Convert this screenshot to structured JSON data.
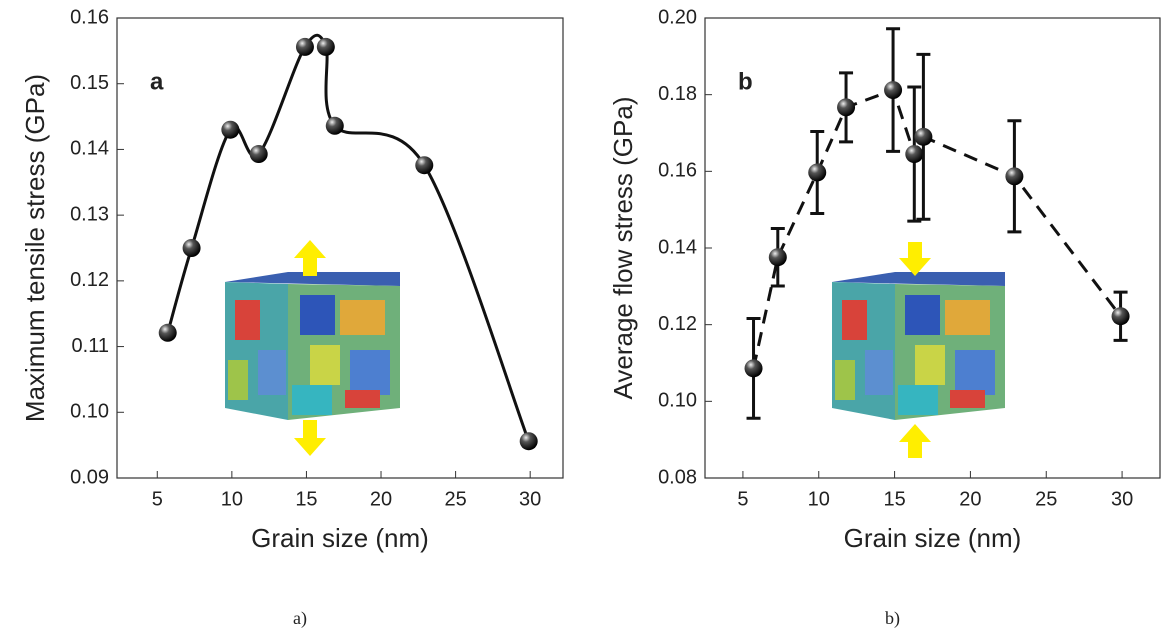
{
  "chart_data": [
    {
      "type": "line",
      "panel_label": "a",
      "caption": "a)",
      "x_label": "Grain size (nm)",
      "y_label": "Maximum tensile stress (GPa)",
      "x": [
        5.7,
        7.3,
        9.9,
        11.8,
        14.9,
        16.3,
        16.9,
        22.9,
        29.9
      ],
      "series": [
        {
          "color": "#111111",
          "smooth": true,
          "dashed": false,
          "values": [
            0.1121,
            0.125,
            0.143,
            0.1393,
            0.1556,
            0.1556,
            0.1436,
            0.1376,
            0.0956
          ]
        }
      ],
      "xlim": [
        2.3,
        32.2
      ],
      "xticks": [
        5,
        10,
        15,
        20,
        25,
        30
      ],
      "ylim": [
        0.09,
        0.16
      ],
      "yticks": [
        {
          "value": 0.09,
          "label": "0.09"
        },
        {
          "value": 0.1,
          "label": "0.10"
        },
        {
          "value": 0.11,
          "label": "0.11"
        },
        {
          "value": 0.12,
          "label": "0.12"
        },
        {
          "value": 0.13,
          "label": "0.13"
        },
        {
          "value": 0.14,
          "label": "0.14"
        },
        {
          "value": 0.15,
          "label": "0.15"
        },
        {
          "value": 0.16,
          "label": "0.16"
        }
      ]
    },
    {
      "type": "errorbar",
      "panel_label": "b",
      "caption": "b)",
      "x_label": "Grain size (nm)",
      "y_label": "Average flow stress (GPa)",
      "x": [
        5.7,
        7.3,
        9.9,
        11.8,
        14.9,
        16.3,
        16.9,
        22.9,
        29.9
      ],
      "series": [
        {
          "color": "#111111",
          "smooth": false,
          "dashed": true,
          "values": [
            0.1086,
            0.1376,
            0.1597,
            0.1767,
            0.1812,
            0.1645,
            0.169,
            0.1587,
            0.1222
          ],
          "errors": [
            0.013,
            0.0075,
            0.0107,
            0.009,
            0.016,
            0.0175,
            0.0215,
            0.0145,
            0.0063
          ]
        }
      ],
      "xlim": [
        2.5,
        32.5
      ],
      "xticks": [
        5,
        10,
        15,
        20,
        25,
        30
      ],
      "ylim": [
        0.08,
        0.2
      ],
      "yticks": [
        {
          "value": 0.08,
          "label": "0.08"
        },
        {
          "value": 0.1,
          "label": "0.10"
        },
        {
          "value": 0.12,
          "label": "0.12"
        },
        {
          "value": 0.14,
          "label": "0.14"
        },
        {
          "value": 0.16,
          "label": "0.16"
        },
        {
          "value": 0.18,
          "label": "0.18"
        },
        {
          "value": 0.2,
          "label": "0.20"
        }
      ]
    }
  ]
}
